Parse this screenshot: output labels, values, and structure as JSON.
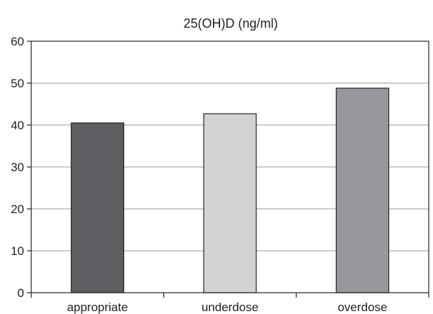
{
  "chart_data": {
    "type": "bar",
    "title": "25(OH)D (ng/ml)",
    "categories": [
      "appropriate",
      "underdose",
      "overdose"
    ],
    "values": [
      40.5,
      42.7,
      48.8
    ],
    "colors": [
      "#5e5e62",
      "#d2d3d5",
      "#97989c"
    ],
    "yticks": [
      0,
      10,
      20,
      30,
      40,
      50,
      60
    ],
    "ylim": [
      0,
      60
    ],
    "grid": true,
    "legend": "none"
  }
}
